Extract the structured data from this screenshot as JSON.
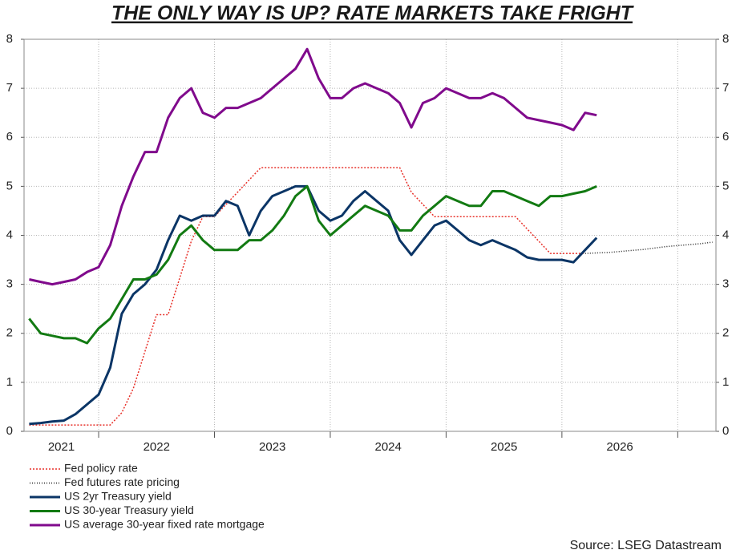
{
  "chart_data": {
    "type": "line",
    "title": "THE ONLY WAY IS UP? RATE MARKETS TAKE FRIGHT",
    "source": "Source: LSEG Datastream",
    "x": [
      2021.4,
      2021.5,
      2021.6,
      2021.7,
      2021.8,
      2021.9,
      2022.0,
      2022.1,
      2022.2,
      2022.3,
      2022.4,
      2022.5,
      2022.6,
      2022.7,
      2022.8,
      2022.9,
      2023.0,
      2023.1,
      2023.2,
      2023.3,
      2023.4,
      2023.5,
      2023.6,
      2023.7,
      2023.8,
      2023.9,
      2024.0,
      2024.1,
      2024.2,
      2024.3,
      2024.4,
      2024.5,
      2024.6,
      2024.7,
      2024.8,
      2024.9,
      2025.0,
      2025.1,
      2025.2,
      2025.3,
      2025.4,
      2025.5,
      2025.6,
      2025.7,
      2025.8,
      2025.9,
      2026.0,
      2026.1,
      2026.2,
      2026.3,
      2026.4,
      2026.5,
      2026.6,
      2026.7,
      2026.8,
      2026.9,
      2027.0,
      2027.1,
      2027.2,
      2027.3
    ],
    "xlim": [
      2021.356,
      2027.33
    ],
    "xtick_marks": [
      2022,
      2023,
      2024,
      2025,
      2026,
      2027
    ],
    "xtick_labels": [
      {
        "value": 2021.5,
        "label": "2021"
      },
      {
        "value": 2022.5,
        "label": "2022"
      },
      {
        "value": 2023.5,
        "label": "2023"
      },
      {
        "value": 2024.5,
        "label": "2024"
      },
      {
        "value": 2025.5,
        "label": "2025"
      },
      {
        "value": 2026.5,
        "label": "2026"
      }
    ],
    "ylim": [
      0,
      8
    ],
    "yticks": [
      0,
      1,
      2,
      3,
      4,
      5,
      6,
      7,
      8
    ],
    "grid": true,
    "series": [
      {
        "name": "Fed policy rate",
        "color": "#e8312a",
        "style": "dotted",
        "values": [
          0.13,
          0.13,
          0.13,
          0.13,
          0.13,
          0.13,
          0.13,
          0.13,
          0.38,
          0.88,
          1.63,
          2.38,
          2.38,
          3.13,
          3.88,
          4.38,
          4.38,
          4.63,
          4.88,
          5.13,
          5.38,
          5.38,
          5.38,
          5.38,
          5.38,
          5.38,
          5.38,
          5.38,
          5.38,
          5.38,
          5.38,
          5.38,
          5.38,
          4.88,
          4.63,
          4.38,
          4.38,
          4.38,
          4.38,
          4.38,
          4.38,
          4.38,
          4.38,
          4.13,
          3.88,
          3.63,
          3.63,
          3.63,
          3.63,
          null,
          null,
          null,
          null,
          null,
          null,
          null,
          null,
          null,
          null,
          null
        ]
      },
      {
        "name": "Fed futures rate pricing",
        "color": "#222222",
        "style": "dotted",
        "values": [
          null,
          null,
          null,
          null,
          null,
          null,
          null,
          null,
          null,
          null,
          null,
          null,
          null,
          null,
          null,
          null,
          null,
          null,
          null,
          null,
          null,
          null,
          null,
          null,
          null,
          null,
          null,
          null,
          null,
          null,
          null,
          null,
          null,
          null,
          null,
          null,
          null,
          null,
          null,
          null,
          null,
          null,
          null,
          null,
          null,
          null,
          null,
          null,
          3.63,
          3.64,
          3.65,
          3.67,
          3.69,
          3.71,
          3.74,
          3.77,
          3.79,
          3.81,
          3.83,
          3.86
        ]
      },
      {
        "name": "US 2yr Treasury yield",
        "color": "#0b3566",
        "style": "solid",
        "values": [
          0.15,
          0.17,
          0.2,
          0.22,
          0.35,
          0.55,
          0.75,
          1.3,
          2.4,
          2.8,
          3.0,
          3.3,
          3.9,
          4.4,
          4.3,
          4.4,
          4.4,
          4.7,
          4.6,
          4.0,
          4.5,
          4.8,
          4.9,
          5.0,
          5.0,
          4.5,
          4.3,
          4.4,
          4.7,
          4.9,
          4.7,
          4.5,
          3.9,
          3.6,
          3.9,
          4.2,
          4.3,
          4.1,
          3.9,
          3.8,
          3.9,
          3.8,
          3.7,
          3.55,
          3.5,
          3.5,
          3.5,
          3.45,
          3.7,
          3.95,
          null,
          null,
          null,
          null,
          null,
          null,
          null,
          null,
          null,
          null
        ]
      },
      {
        "name": "US 30-year Treasury yield",
        "color": "#127a12",
        "style": "solid",
        "values": [
          2.3,
          2.0,
          1.95,
          1.9,
          1.9,
          1.8,
          2.1,
          2.3,
          2.7,
          3.1,
          3.1,
          3.2,
          3.5,
          4.0,
          4.2,
          3.9,
          3.7,
          3.7,
          3.7,
          3.9,
          3.9,
          4.1,
          4.4,
          4.8,
          5.0,
          4.3,
          4.0,
          4.2,
          4.4,
          4.6,
          4.5,
          4.4,
          4.1,
          4.1,
          4.4,
          4.6,
          4.8,
          4.7,
          4.6,
          4.6,
          4.9,
          4.9,
          4.8,
          4.7,
          4.6,
          4.8,
          4.8,
          4.85,
          4.9,
          5.0,
          null,
          null,
          null,
          null,
          null,
          null,
          null,
          null,
          null,
          null
        ]
      },
      {
        "name": "US average 30-year fixed rate mortgage",
        "color": "#800a8c",
        "style": "solid",
        "values": [
          3.1,
          3.05,
          3.0,
          3.05,
          3.1,
          3.25,
          3.35,
          3.8,
          4.6,
          5.2,
          5.7,
          5.7,
          6.4,
          6.8,
          7.0,
          6.5,
          6.4,
          6.6,
          6.6,
          6.7,
          6.8,
          7.0,
          7.2,
          7.4,
          7.8,
          7.2,
          6.8,
          6.8,
          7.0,
          7.1,
          7.0,
          6.9,
          6.7,
          6.2,
          6.7,
          6.8,
          7.0,
          6.9,
          6.8,
          6.8,
          6.9,
          6.8,
          6.6,
          6.4,
          6.35,
          6.3,
          6.25,
          6.15,
          6.5,
          6.45,
          null,
          null,
          null,
          null,
          null,
          null,
          null,
          null,
          null,
          null
        ]
      }
    ]
  }
}
